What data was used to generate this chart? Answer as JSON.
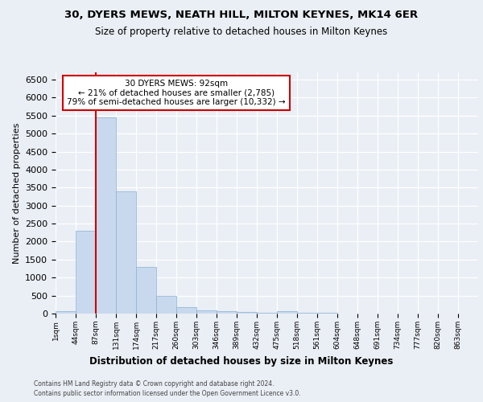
{
  "title1": "30, DYERS MEWS, NEATH HILL, MILTON KEYNES, MK14 6ER",
  "title2": "Size of property relative to detached houses in Milton Keynes",
  "xlabel": "Distribution of detached houses by size in Milton Keynes",
  "ylabel": "Number of detached properties",
  "bin_labels": [
    "1sqm",
    "44sqm",
    "87sqm",
    "131sqm",
    "174sqm",
    "217sqm",
    "260sqm",
    "303sqm",
    "346sqm",
    "389sqm",
    "432sqm",
    "475sqm",
    "518sqm",
    "561sqm",
    "604sqm",
    "648sqm",
    "691sqm",
    "734sqm",
    "777sqm",
    "820sqm",
    "863sqm"
  ],
  "bar_values": [
    60,
    2300,
    5450,
    3400,
    1300,
    490,
    175,
    100,
    65,
    45,
    30,
    60,
    20,
    15,
    10,
    8,
    5,
    4,
    3,
    2,
    0
  ],
  "bar_color": "#c8d9ee",
  "bar_edge_color": "#8ab0d4",
  "red_line_x": 2.0,
  "annotation_title": "30 DYERS MEWS: 92sqm",
  "annotation_line1": "← 21% of detached houses are smaller (2,785)",
  "annotation_line2": "79% of semi-detached houses are larger (10,332) →",
  "red_color": "#cc0000",
  "ylim": [
    0,
    6700
  ],
  "yticks": [
    0,
    500,
    1000,
    1500,
    2000,
    2500,
    3000,
    3500,
    4000,
    4500,
    5000,
    5500,
    6000,
    6500
  ],
  "footnote1": "Contains HM Land Registry data © Crown copyright and database right 2024.",
  "footnote2": "Contains public sector information licensed under the Open Government Licence v3.0.",
  "bg_color": "#eaeef5"
}
